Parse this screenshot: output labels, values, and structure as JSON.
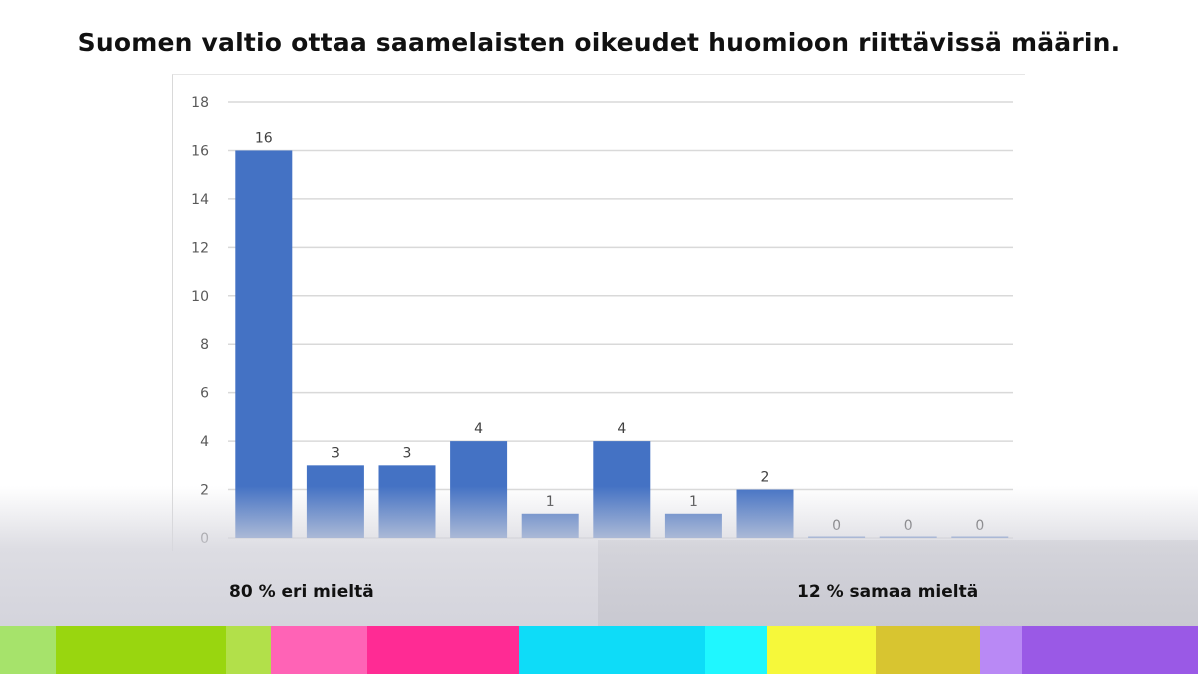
{
  "title": "Suomen valtio ottaa saamelaisten oikeudet huomioon riittävissä määrin.",
  "summary": {
    "disagree": "80 % eri mieltä",
    "agree": "12 % samaa mieltä"
  },
  "chart_data": {
    "type": "bar",
    "title": "",
    "xlabel": "",
    "ylabel": "",
    "ylim": [
      0,
      18
    ],
    "yticks": [
      0,
      2,
      4,
      6,
      8,
      10,
      12,
      14,
      16,
      18
    ],
    "grid": true,
    "values": [
      16,
      3,
      3,
      4,
      1,
      4,
      1,
      2,
      0,
      0,
      0
    ],
    "data_labels": [
      "16",
      "3",
      "3",
      "4",
      "1",
      "4",
      "1",
      "2",
      "0",
      "0",
      "0"
    ],
    "bar_color": "#4472c4"
  },
  "colors": {
    "gridline": "#d9d9d9",
    "tick_text": "#595959",
    "stripe": [
      "#a6e36b",
      "#99d60f",
      "#b2e04a",
      "#ff63b6",
      "#ff2b94",
      "#0edcf8",
      "#1ff7ff",
      "#f6f83a",
      "#d8c530",
      "#b989f5",
      "#9a59e6"
    ]
  }
}
